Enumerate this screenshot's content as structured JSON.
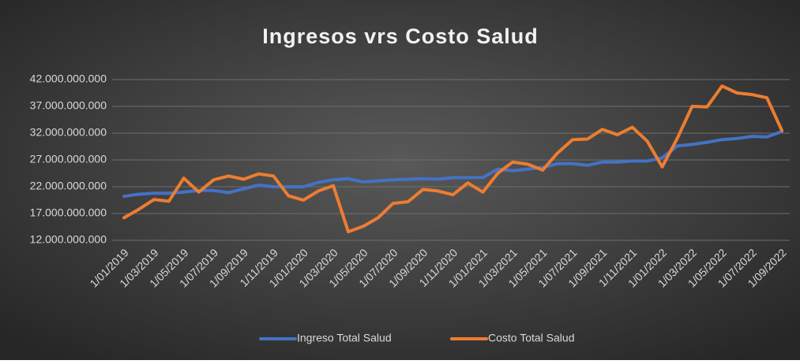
{
  "chart_data": {
    "type": "line",
    "title": "Ingresos vrs Costo Salud",
    "categories": [
      "1/01/2019",
      null,
      "1/03/2019",
      null,
      "1/05/2019",
      null,
      "1/07/2019",
      null,
      "1/09/2019",
      null,
      "1/11/2019",
      null,
      "1/01/2020",
      null,
      "1/03/2020",
      null,
      "1/05/2020",
      null,
      "1/07/2020",
      null,
      "1/09/2020",
      null,
      "1/11/2020",
      null,
      "1/01/2021",
      null,
      "1/03/2021",
      null,
      "1/05/2021",
      null,
      "1/07/2021",
      null,
      "1/09/2021",
      null,
      "1/11/2021",
      null,
      "1/01/2022",
      null,
      "1/03/2022",
      null,
      "1/05/2022",
      null,
      "1/07/2022",
      null,
      "1/09/2022"
    ],
    "series": [
      {
        "name": "Ingreso Total Salud",
        "color": "#4472c4",
        "values": [
          20200000000,
          20600000000,
          20800000000,
          20800000000,
          21000000000,
          21300000000,
          21300000000,
          20900000000,
          21600000000,
          22300000000,
          22000000000,
          22000000000,
          22000000000,
          22800000000,
          23300000000,
          23500000000,
          22900000000,
          23100000000,
          23300000000,
          23400000000,
          23500000000,
          23400000000,
          23700000000,
          23700000000,
          23700000000,
          25300000000,
          25000000000,
          25300000000,
          25600000000,
          26300000000,
          26300000000,
          26000000000,
          26600000000,
          26600000000,
          26800000000,
          26800000000,
          27400000000,
          29600000000,
          29900000000,
          30300000000,
          30800000000,
          31000000000,
          31400000000,
          31300000000,
          32300000000
        ]
      },
      {
        "name": "Costo Total Salud",
        "color": "#ed7d31",
        "values": [
          16200000000,
          17800000000,
          19600000000,
          19300000000,
          23600000000,
          21000000000,
          23300000000,
          24000000000,
          23400000000,
          24400000000,
          24000000000,
          20300000000,
          19500000000,
          21200000000,
          22200000000,
          13600000000,
          14600000000,
          16200000000,
          18900000000,
          19200000000,
          21500000000,
          21200000000,
          20500000000,
          22700000000,
          21000000000,
          24500000000,
          26600000000,
          26200000000,
          25100000000,
          28300000000,
          30800000000,
          30900000000,
          32700000000,
          31700000000,
          33100000000,
          30500000000,
          25700000000,
          31000000000,
          37000000000,
          36900000000,
          40800000000,
          39500000000,
          39200000000,
          38600000000,
          32500000000
        ]
      }
    ],
    "ylim": [
      12000000000,
      42000000000
    ],
    "yticks": [
      {
        "value": 12000000000,
        "label": "12.000.000.000"
      },
      {
        "value": 17000000000,
        "label": "17.000.000.000"
      },
      {
        "value": 22000000000,
        "label": "22.000.000.000"
      },
      {
        "value": 27000000000,
        "label": "27.000.000.000"
      },
      {
        "value": 32000000000,
        "label": "32.000.000.000"
      },
      {
        "value": 37000000000,
        "label": "37.000.000.000"
      },
      {
        "value": 42000000000,
        "label": "42.000.000.000"
      }
    ],
    "grid": true,
    "legend": "bottom"
  }
}
